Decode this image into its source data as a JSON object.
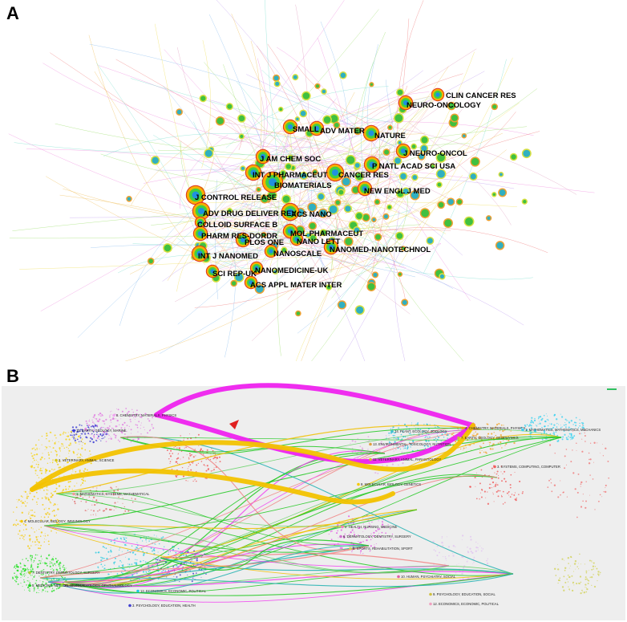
{
  "panel_a": {
    "letter": "A",
    "journals": [
      {
        "label": "CLIN CANCER RES",
        "size": 6
      },
      {
        "label": "NEURO-ONCOLOGY",
        "size": 7
      },
      {
        "label": "SMALL",
        "size": 7
      },
      {
        "label": "ADV MATER",
        "size": 7
      },
      {
        "label": "NATURE",
        "size": 8
      },
      {
        "label": "J NEURO-ONCOL",
        "size": 7
      },
      {
        "label": "J AM CHEM SOC",
        "size": 7
      },
      {
        "label": "P NATL ACAD SCI USA",
        "size": 8
      },
      {
        "label": "INT J PHARMACEUT",
        "size": 8
      },
      {
        "label": "CANCER RES",
        "size": 9
      },
      {
        "label": "BIOMATERIALS",
        "size": 11
      },
      {
        "label": "NEW ENGL J MED",
        "size": 7
      },
      {
        "label": "J CONTROL RELEASE",
        "size": 10
      },
      {
        "label": "ADV DRUG DELIVER REV",
        "size": 9
      },
      {
        "label": "ACS NANO",
        "size": 9
      },
      {
        "label": "COLLOID SURFACE B",
        "size": 5
      },
      {
        "label": "MOL PHARMACEUT",
        "size": 7
      },
      {
        "label": "PHARM RES-DORDR",
        "size": 7
      },
      {
        "label": "PLOS ONE",
        "size": 7
      },
      {
        "label": "NANO LETT",
        "size": 6
      },
      {
        "label": "INT J NANOMED",
        "size": 8
      },
      {
        "label": "NANOSCALE",
        "size": 6
      },
      {
        "label": "NANOMED-NANOTECHNOL",
        "size": 7
      },
      {
        "label": "SCI REP-UK",
        "size": 6
      },
      {
        "label": "NANOMEDICINE-UK",
        "size": 6
      },
      {
        "label": "ACS APPL MATER INTER",
        "size": 6
      }
    ]
  },
  "panel_b": {
    "letter": "B",
    "disciplines": [
      {
        "label": "8. CHEMISTRY, MATERIALS, PHYSICS",
        "color": "#f0a8f0"
      },
      {
        "label": "10. EARTH, GEOLOGY, MARINE",
        "color": "#3a3ad8"
      },
      {
        "label": "2. VETERINARY, ANIMAL, SCIENCE",
        "color": "#d8c818"
      },
      {
        "label": "1. MATHEMATICS, SYSTEMS, MATHEMATICAL",
        "color": "#f09898"
      },
      {
        "label": "4. MOLECULAR, BIOLOGY, IMMUNOLOGY",
        "color": "#f5c800"
      },
      {
        "label": "7. DENTISTRY, DERMATOLOGY, SURGERY",
        "color": "#b8c830"
      },
      {
        "label": "5. MEDICINE, MEDICAL, CLINICAL",
        "color": "#20d020"
      },
      {
        "label": "11. OPHTHALMOLOGY, OPHTHALMOLOGY",
        "color": "#80d050"
      },
      {
        "label": "12. ECONOMICS, ECONOMIC, POLITICAL",
        "color": "#20c8e0"
      },
      {
        "label": "3. PSYCHOLOGY, EDUCATION, HEALTH",
        "color": "#4040d0"
      },
      {
        "label": "14. PLANT, ECOLOGY, ZOOLOGY",
        "color": "#40c0d0"
      },
      {
        "label": "4. CHEMISTRY, MATERIALS, PHYSICS",
        "color": "#f0a020"
      },
      {
        "label": "7. EARTH, GEOLOGY, GEOPHYSICS",
        "color": "#c0c040"
      },
      {
        "label": "1. MATHEMATICS, MATHEMATICS, MECHANICS",
        "color": "#40d0f0"
      },
      {
        "label": "13. ENVIRONMENTAL, TOXICOLOGY, NUTRITION",
        "color": "#e0a040"
      },
      {
        "label": "11. VETERINARY, ANIMAL, PARASITOLOGY",
        "color": "#d0c030"
      },
      {
        "label": "8. MOLECULAR, BIOLOGY, GENETICS",
        "color": "#f5c800"
      },
      {
        "label": "3. SYSTEMS, COMPUTING, COMPUTER",
        "color": "#f06060"
      },
      {
        "label": "2. HEALTH, NURSING, MEDICINE",
        "color": "#f080c0"
      },
      {
        "label": "6. DERMATOLOGY, DENTISTRY, SURGERY",
        "color": "#d070d0"
      },
      {
        "label": "5. SPORTS, REHABILITATION, SPORT",
        "color": "#d0d060"
      },
      {
        "label": "10. HUMAN, PSYCHIATRY, SOCIAL",
        "color": "#e060a0"
      },
      {
        "label": "9. PSYCHOLOGY, EDUCATION, SOCIAL",
        "color": "#d0c040"
      },
      {
        "label": "12. ECONOMICS, ECONOMIC, POLITICAL",
        "color": "#f0a0c0"
      }
    ],
    "thick_arcs": [
      {
        "from": "8. CHEMISTRY, MATERIALS, PHYSICS",
        "to": "4. CHEMISTRY, MATERIALS, PHYSICS",
        "color": "#ee22ee"
      },
      {
        "from": "4. MOLECULAR, BIOLOGY, IMMUNOLOGY",
        "to": "4. CHEMISTRY, MATERIALS, PHYSICS",
        "color": "#f2c200"
      },
      {
        "from": "4. MOLECULAR, BIOLOGY, IMMUNOLOGY",
        "to": "8. MOLECULAR, BIOLOGY, GENETICS",
        "color": "#f2c200"
      }
    ]
  }
}
